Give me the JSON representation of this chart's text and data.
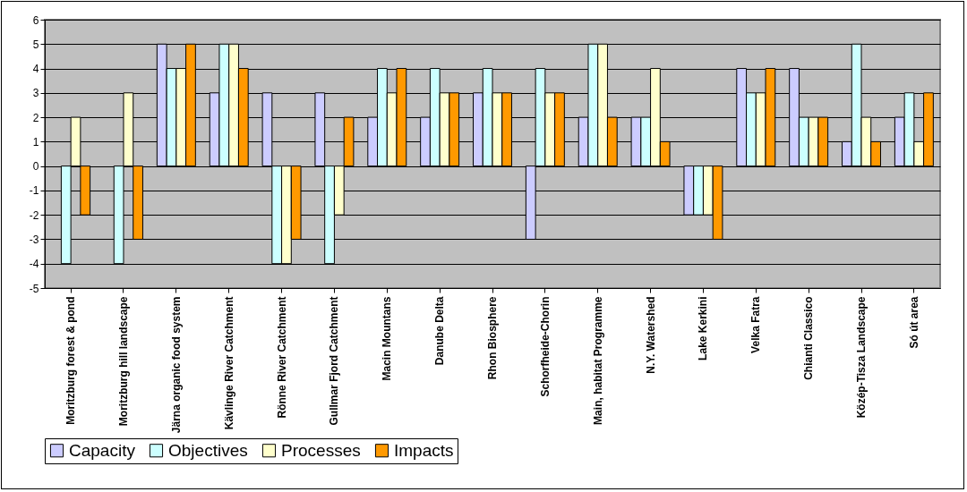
{
  "chart_data": {
    "type": "bar",
    "categories": [
      "Moritzburg forest & pond",
      "Moritzburg hill landscape",
      "Järna organic food system",
      "Kävlinge River Catchment",
      "Rönne River Catchment",
      "Gullmar Fjord Catchment",
      "Macin Mountans",
      "Danube Delta",
      "Rhon Biosphere",
      "Schorfheide-Chorin",
      "Main, habitat Programme",
      "N.Y. Watershed",
      "Lake Kerkini",
      "Velka Fatra",
      "Chianti Classico",
      "Közép-Tisza Landscape",
      "Só út area"
    ],
    "series": [
      {
        "name": "Capacity",
        "color": "#ccccff",
        "values": [
          null,
          null,
          5,
          3,
          3,
          3,
          2,
          2,
          3,
          -3,
          2,
          2,
          -2,
          4,
          4,
          1,
          2
        ]
      },
      {
        "name": "Objectives",
        "color": "#ccffff",
        "values": [
          -4,
          -4,
          4,
          5,
          -4,
          -4,
          4,
          4,
          4,
          4,
          5,
          2,
          -2,
          3,
          2,
          5,
          3
        ]
      },
      {
        "name": "Processes",
        "color": "#ffffcc",
        "values": [
          2,
          3,
          4,
          5,
          -4,
          -2,
          3,
          3,
          3,
          3,
          5,
          4,
          -2,
          3,
          2,
          2,
          1
        ]
      },
      {
        "name": "Impacts",
        "color": "#ff9900",
        "values": [
          -2,
          -3,
          5,
          4,
          -3,
          2,
          4,
          3,
          3,
          3,
          2,
          1,
          -3,
          4,
          2,
          1,
          3
        ]
      }
    ],
    "ylim": [
      -5,
      6
    ],
    "yticks": [
      -5,
      -4,
      -3,
      -2,
      -1,
      0,
      1,
      2,
      3,
      4,
      5,
      6
    ],
    "grid": "y",
    "legend": "bottom"
  }
}
